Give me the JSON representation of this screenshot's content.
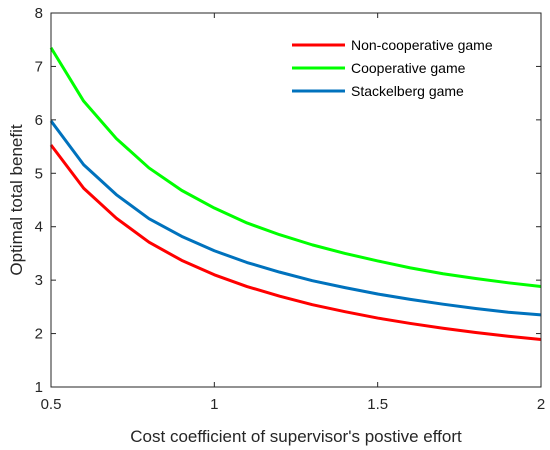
{
  "chart_data": {
    "type": "line",
    "title": "",
    "xlabel": "Cost coefficient of supervisor's postive effort",
    "ylabel": "Optimal total benefit",
    "xlim": [
      0.5,
      2
    ],
    "ylim": [
      1,
      8
    ],
    "x_ticks": [
      0.5,
      1,
      1.5,
      2
    ],
    "x_tick_labels": [
      "0.5",
      "1",
      "1.5",
      "2"
    ],
    "y_ticks": [
      1,
      2,
      3,
      4,
      5,
      6,
      7,
      8
    ],
    "y_tick_labels": [
      "1",
      "2",
      "3",
      "4",
      "5",
      "6",
      "7",
      "8"
    ],
    "grid": false,
    "legend_position": "top-right",
    "x": [
      0.5,
      0.6,
      0.7,
      0.8,
      0.9,
      1.0,
      1.1,
      1.2,
      1.3,
      1.4,
      1.5,
      1.6,
      1.7,
      1.8,
      1.9,
      2.0
    ],
    "series": [
      {
        "name": "Non-cooperative game",
        "color": "#ff0000",
        "values": [
          5.53,
          4.72,
          4.16,
          3.71,
          3.37,
          3.1,
          2.88,
          2.7,
          2.54,
          2.41,
          2.29,
          2.19,
          2.1,
          2.02,
          1.95,
          1.89
        ]
      },
      {
        "name": "Cooperative game",
        "color": "#00ff00",
        "values": [
          7.35,
          6.35,
          5.65,
          5.1,
          4.68,
          4.35,
          4.07,
          3.85,
          3.66,
          3.5,
          3.36,
          3.23,
          3.12,
          3.03,
          2.95,
          2.88
        ]
      },
      {
        "name": "Stackelberg game",
        "color": "#0072bd",
        "values": [
          5.98,
          5.16,
          4.6,
          4.15,
          3.82,
          3.55,
          3.33,
          3.15,
          2.99,
          2.86,
          2.74,
          2.64,
          2.55,
          2.47,
          2.4,
          2.35
        ]
      }
    ]
  }
}
